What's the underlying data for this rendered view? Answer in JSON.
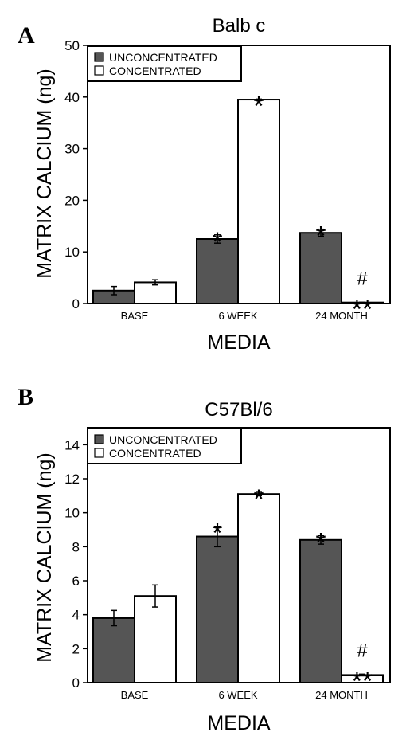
{
  "colors": {
    "dark_bar": "#555555",
    "light_bar": "#ffffff",
    "axis": "#000000"
  },
  "chart_data": [
    {
      "type": "bar",
      "panel": "A",
      "title": "Balb c",
      "xlabel": "MEDIA",
      "ylabel": "MATRIX CALCIUM (ng)",
      "ylim": [
        0,
        50
      ],
      "yticks": [
        "0",
        "10",
        "20",
        "30",
        "40",
        "50"
      ],
      "categories": [
        "BASE",
        "6 WEEK",
        "24 MONTH"
      ],
      "legend_position": "top-left",
      "series": [
        {
          "name": "UNCONCENTRATED",
          "color": "#555555",
          "values": [
            2.5,
            12.5,
            13.7
          ],
          "errors": [
            0.8,
            0.8,
            0.7
          ]
        },
        {
          "name": "CONCENTRATED",
          "color": "#ffffff",
          "values": [
            4.1,
            39.5,
            0.2
          ],
          "errors": [
            0.5,
            0.1,
            0.05
          ]
        }
      ],
      "annotations": [
        {
          "category": 1,
          "series": 0,
          "text": "*"
        },
        {
          "category": 1,
          "series": 1,
          "text": "*"
        },
        {
          "category": 2,
          "series": 0,
          "text": "*"
        },
        {
          "category": 2,
          "series": 1,
          "text": "**",
          "extra": "#"
        }
      ]
    },
    {
      "type": "bar",
      "panel": "B",
      "title": "C57Bl/6",
      "xlabel": "MEDIA",
      "ylabel": "MATRIX CALCIUM (ng)",
      "ylim": [
        0,
        15
      ],
      "yticks": [
        "0",
        "2",
        "4",
        "6",
        "8",
        "10",
        "12",
        "14"
      ],
      "categories": [
        "BASE",
        "6 WEEK",
        "24 MONTH"
      ],
      "legend_position": "top-left",
      "series": [
        {
          "name": "UNCONCENTRATED",
          "color": "#555555",
          "values": [
            3.8,
            8.6,
            8.4
          ],
          "errors": [
            0.45,
            0.6,
            0.25
          ]
        },
        {
          "name": "CONCENTRATED",
          "color": "#ffffff",
          "values": [
            5.1,
            11.1,
            0.45
          ],
          "errors": [
            0.65,
            0.1,
            0.05
          ]
        }
      ],
      "annotations": [
        {
          "category": 1,
          "series": 0,
          "text": "*"
        },
        {
          "category": 1,
          "series": 1,
          "text": "*"
        },
        {
          "category": 2,
          "series": 0,
          "text": "*"
        },
        {
          "category": 2,
          "series": 1,
          "text": "**",
          "extra": "#"
        }
      ]
    }
  ]
}
